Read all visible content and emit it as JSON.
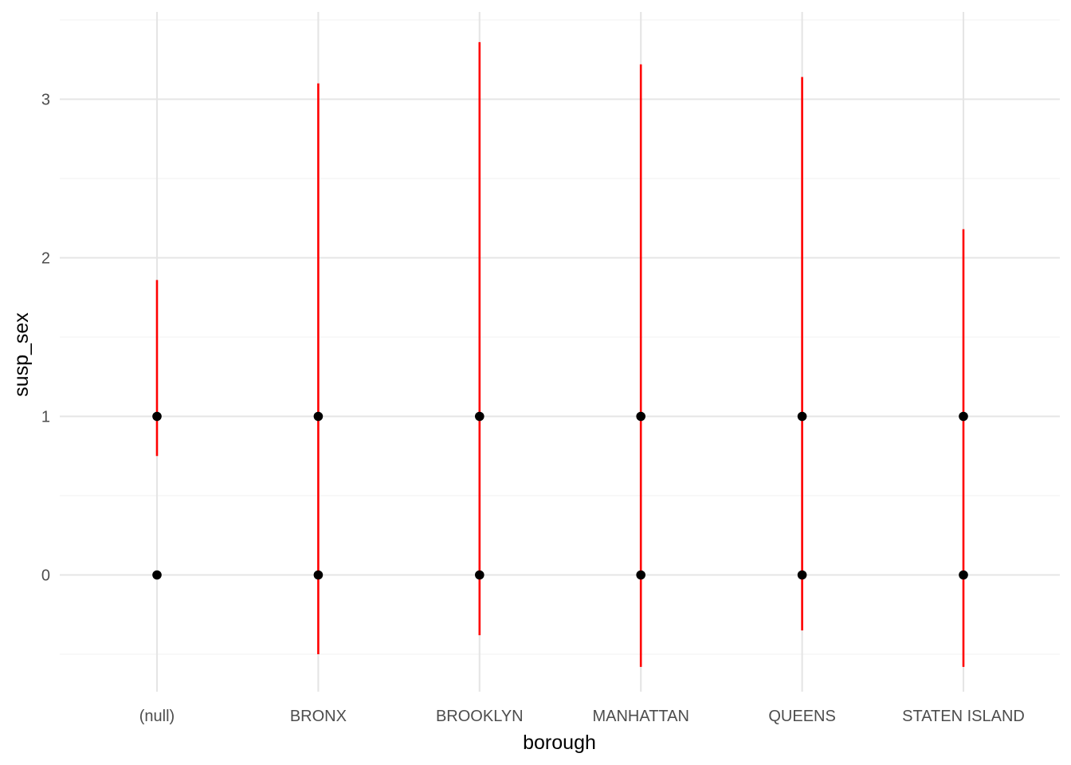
{
  "chart_data": {
    "type": "scatter",
    "title": "",
    "xlabel": "borough",
    "ylabel": "susp_sex",
    "categories": [
      "(null)",
      "BRONX",
      "BROOKLYN",
      "MANHATTAN",
      "QUEENS",
      "STATEN ISLAND"
    ],
    "y_ticks": [
      "0",
      "1",
      "2",
      "3"
    ],
    "ylim": [
      -0.75,
      3.56
    ],
    "grid": true,
    "points": [
      {
        "category": "(null)",
        "values": [
          0,
          1
        ]
      },
      {
        "category": "BRONX",
        "values": [
          0,
          1
        ]
      },
      {
        "category": "BROOKLYN",
        "values": [
          0,
          1
        ]
      },
      {
        "category": "MANHATTAN",
        "values": [
          0,
          1
        ]
      },
      {
        "category": "QUEENS",
        "values": [
          0,
          1
        ]
      },
      {
        "category": "STATEN ISLAND",
        "values": [
          0,
          1
        ]
      }
    ],
    "ranges": [
      {
        "category": "(null)",
        "low": 0.75,
        "high": 1.86
      },
      {
        "category": "BRONX",
        "low": -0.5,
        "high": 3.1
      },
      {
        "category": "BROOKLYN",
        "low": -0.38,
        "high": 3.36
      },
      {
        "category": "MANHATTAN",
        "low": -0.58,
        "high": 3.22
      },
      {
        "category": "QUEENS",
        "low": -0.35,
        "high": 3.14
      },
      {
        "category": "STATEN ISLAND",
        "low": -0.58,
        "high": 2.18
      }
    ],
    "colors": {
      "point": "#000000",
      "range": "#ff0000",
      "grid_major": "#e5e5e5",
      "grid_minor": "#f0f0f0",
      "tick_text": "#4d4d4d"
    }
  }
}
